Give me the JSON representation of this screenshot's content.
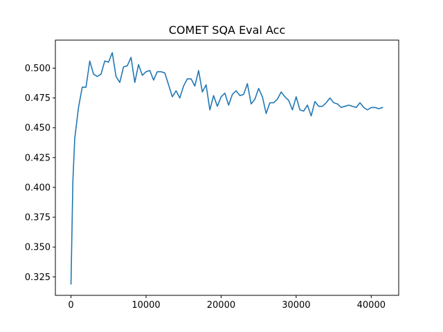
{
  "chart_data": {
    "type": "line",
    "title": "COMET SQA Eval Acc",
    "xlabel": "",
    "ylabel": "",
    "xlim": [
      -2080,
      43660
    ],
    "ylim": [
      0.3095,
      0.5235
    ],
    "x_ticks": [
      0,
      10000,
      20000,
      30000,
      40000
    ],
    "y_ticks": [
      0.325,
      0.35,
      0.375,
      0.4,
      0.425,
      0.45,
      0.475,
      0.5
    ],
    "x_tick_labels": [
      "0",
      "10000",
      "20000",
      "30000",
      "40000"
    ],
    "y_tick_labels": [
      "0.325",
      "0.350",
      "0.375",
      "0.400",
      "0.425",
      "0.450",
      "0.475",
      "0.500"
    ],
    "grid": false,
    "series_color": "#1f77b4",
    "series": [
      {
        "name": "",
        "x": [
          0,
          250,
          500,
          1000,
          1500,
          2000,
          2500,
          3000,
          3500,
          4000,
          4500,
          5000,
          5500,
          6000,
          6500,
          7000,
          7500,
          8000,
          8500,
          9000,
          9500,
          10000,
          10500,
          11000,
          11500,
          12000,
          12500,
          13000,
          13500,
          14000,
          14500,
          15000,
          15500,
          16000,
          16500,
          17000,
          17500,
          18000,
          18500,
          19000,
          19500,
          20000,
          20500,
          21000,
          21500,
          22000,
          22500,
          23000,
          23500,
          24000,
          24500,
          25000,
          25500,
          26000,
          26500,
          27000,
          27500,
          28000,
          28500,
          29000,
          29500,
          30000,
          30500,
          31000,
          31500,
          32000,
          32500,
          33000,
          33500,
          34000,
          34500,
          35000,
          35500,
          36000,
          36500,
          37000,
          37500,
          38000,
          38500,
          39000,
          39500,
          40000,
          40500,
          41000,
          41500
        ],
        "values": [
          0.319,
          0.405,
          0.441,
          0.467,
          0.484,
          0.484,
          0.506,
          0.495,
          0.493,
          0.495,
          0.506,
          0.505,
          0.513,
          0.493,
          0.488,
          0.501,
          0.502,
          0.509,
          0.488,
          0.503,
          0.494,
          0.497,
          0.498,
          0.49,
          0.497,
          0.497,
          0.496,
          0.486,
          0.476,
          0.481,
          0.475,
          0.485,
          0.491,
          0.491,
          0.485,
          0.498,
          0.48,
          0.486,
          0.465,
          0.477,
          0.468,
          0.476,
          0.479,
          0.469,
          0.478,
          0.481,
          0.477,
          0.478,
          0.487,
          0.47,
          0.474,
          0.483,
          0.476,
          0.462,
          0.471,
          0.471,
          0.474,
          0.48,
          0.476,
          0.473,
          0.465,
          0.476,
          0.465,
          0.464,
          0.469,
          0.46,
          0.472,
          0.468,
          0.468,
          0.471,
          0.475,
          0.471,
          0.47,
          0.467,
          0.468,
          0.469,
          0.468,
          0.467,
          0.471,
          0.467,
          0.465,
          0.467,
          0.467,
          0.466,
          0.467
        ]
      }
    ]
  }
}
